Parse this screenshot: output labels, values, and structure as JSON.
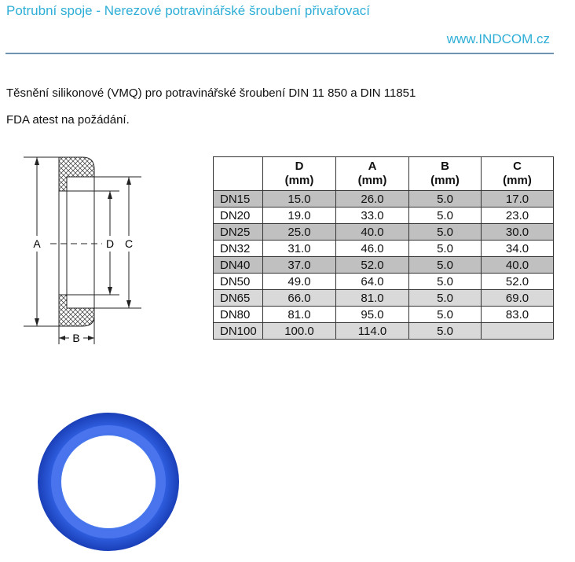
{
  "header": {
    "title": "Potrubní spoje - Nerezové potravinářské šroubení přivařovací",
    "website": "www.INDCOM.cz",
    "accent_color": "#2eaed6"
  },
  "intro": {
    "line1": "Těsnění silikonové (VMQ) pro potravinářské šroubení DIN 11 850 a DIN 11851",
    "line2": "FDA atest na požádání."
  },
  "diagram": {
    "labels": {
      "a": "A",
      "d": "D",
      "c": "C",
      "b": "B"
    }
  },
  "table": {
    "headers": [
      {
        "name": "",
        "unit": ""
      },
      {
        "name": "D",
        "unit": "(mm)"
      },
      {
        "name": "A",
        "unit": "(mm)"
      },
      {
        "name": "B",
        "unit": "(mm)"
      },
      {
        "name": "C",
        "unit": "(mm)"
      }
    ],
    "rows": [
      [
        "DN15",
        "15.0",
        "26.0",
        "5.0",
        "17.0"
      ],
      [
        "DN20",
        "19.0",
        "33.0",
        "5.0",
        "23.0"
      ],
      [
        "DN25",
        "25.0",
        "40.0",
        "5.0",
        "30.0"
      ],
      [
        "DN32",
        "31.0",
        "46.0",
        "5.0",
        "34.0"
      ],
      [
        "DN40",
        "37.0",
        "52.0",
        "5.0",
        "40.0"
      ],
      [
        "DN50",
        "49.0",
        "64.0",
        "5.0",
        "52.0"
      ],
      [
        "DN65",
        "66.0",
        "81.0",
        "5.0",
        "69.0"
      ],
      [
        "DN80",
        "81.0",
        "95.0",
        "5.0",
        "83.0"
      ],
      [
        "DN100",
        "100.0",
        "114.0",
        "5.0",
        ""
      ]
    ]
  },
  "photo": {
    "ring_color": "#2f5fe0"
  }
}
